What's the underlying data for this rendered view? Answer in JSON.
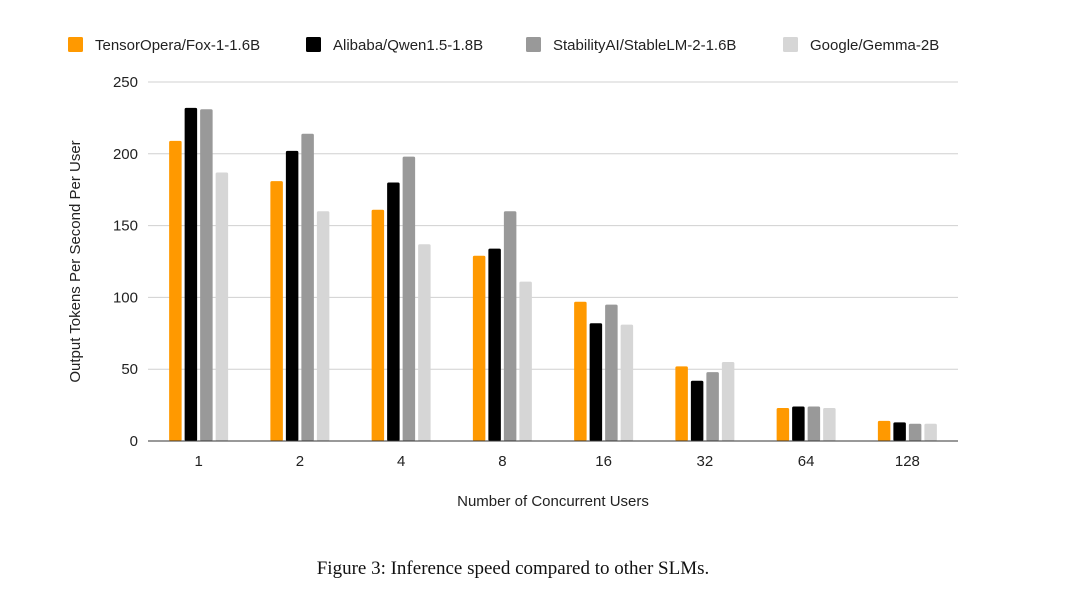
{
  "chart_data": {
    "type": "bar",
    "title": "",
    "xlabel": "Number of Concurrent Users",
    "ylabel": "Output Tokens Per Second Per User",
    "ylim": [
      0,
      250
    ],
    "yticks": [
      0,
      50,
      100,
      150,
      200,
      250
    ],
    "grid": true,
    "legend_position": "top",
    "categories": [
      "1",
      "2",
      "4",
      "8",
      "16",
      "32",
      "64",
      "128"
    ],
    "series": [
      {
        "name": "TensorOpera/Fox-1-1.6B",
        "color": "#FF9900",
        "values": [
          209,
          181,
          161,
          129,
          97,
          52,
          23,
          14
        ]
      },
      {
        "name": "Alibaba/Qwen1.5-1.8B",
        "color": "#000000",
        "values": [
          232,
          202,
          180,
          134,
          82,
          42,
          24,
          13
        ]
      },
      {
        "name": "StabilityAI/StableLM-2-1.6B",
        "color": "#999999",
        "values": [
          231,
          214,
          198,
          160,
          95,
          48,
          24,
          12
        ]
      },
      {
        "name": "Google/Gemma-2B",
        "color": "#D6D6D6",
        "values": [
          187,
          160,
          137,
          111,
          81,
          55,
          23,
          12
        ]
      }
    ]
  },
  "caption": "Figure 3: Inference speed compared to other SLMs."
}
